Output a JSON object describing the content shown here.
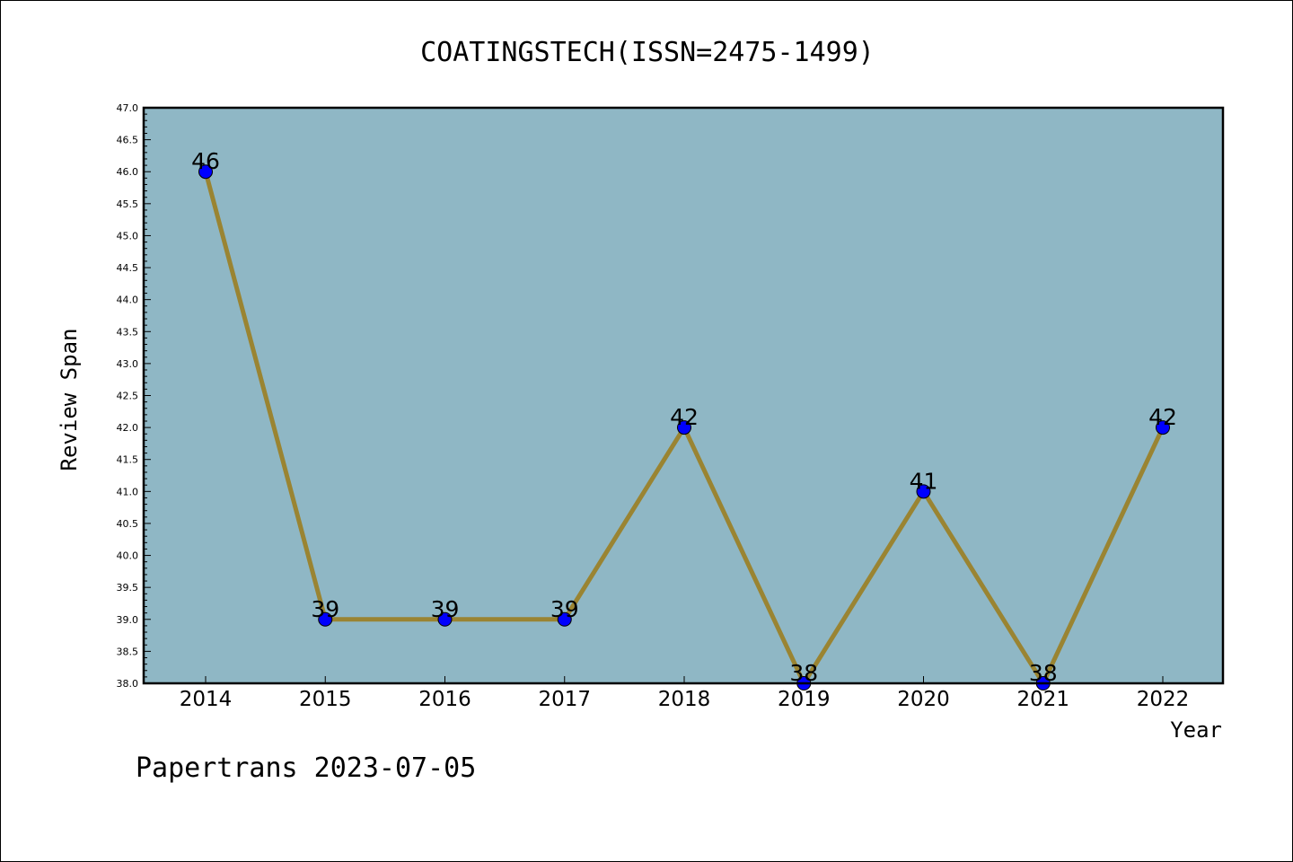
{
  "chart_data": {
    "type": "line",
    "title": "COATINGSTECH(ISSN=2475-1499)",
    "xlabel": "Year",
    "ylabel": "Review Span",
    "categories": [
      "2014",
      "2015",
      "2016",
      "2017",
      "2018",
      "2019",
      "2020",
      "2021",
      "2022"
    ],
    "series": [
      {
        "values": [
          46,
          39,
          39,
          39,
          42,
          38,
          41,
          38,
          42
        ],
        "data_labels": [
          "46",
          "39",
          "39",
          "39",
          "42",
          "38",
          "41",
          "38",
          "42"
        ],
        "line_color": "#9a8432",
        "marker_color": "#0000ff"
      }
    ],
    "ylim": [
      38.0,
      47.0
    ],
    "yticks": [
      "38.0",
      "38.5",
      "39.0",
      "39.5",
      "40.0",
      "40.5",
      "41.0",
      "41.5",
      "42.0",
      "42.5",
      "43.0",
      "43.5",
      "44.0",
      "44.5",
      "45.0",
      "45.5",
      "46.0",
      "46.5",
      "47.0"
    ],
    "plot_background": "#8fb7c5",
    "grid": false,
    "legend": "none"
  },
  "footer": {
    "watermark": "Papertrans 2023-07-05"
  }
}
